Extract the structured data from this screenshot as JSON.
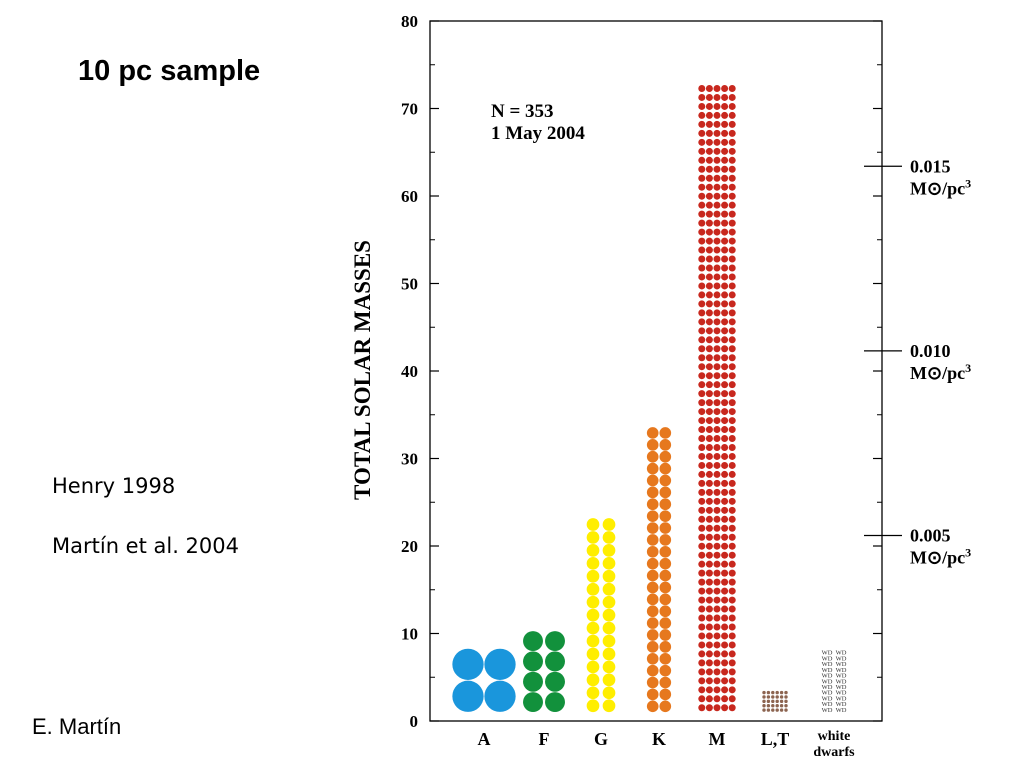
{
  "slide": {
    "title": "10 pc sample",
    "references": [
      "Henry 1998",
      "Martín et al. 2004"
    ],
    "credit": "E. Martín"
  },
  "chart_data": {
    "type": "bar",
    "ylabel": "TOTAL SOLAR MASSES",
    "ylim": [
      0,
      80
    ],
    "yticks": [
      0,
      10,
      20,
      30,
      40,
      50,
      60,
      70,
      80
    ],
    "annotation": [
      "N = 353",
      "1 May 2004"
    ],
    "categories": [
      {
        "label": "A",
        "value": 8.3,
        "color": "#1a96dc",
        "cols": 2,
        "rows": 2,
        "marker": "circle"
      },
      {
        "label": "F",
        "value": 10.3,
        "color": "#12913c",
        "cols": 2,
        "rows": 4,
        "marker": "circle"
      },
      {
        "label": "G",
        "value": 23.2,
        "color": "#ffee00",
        "cols": 2,
        "rows": 15,
        "marker": "circle"
      },
      {
        "label": "K",
        "value": 33.6,
        "color": "#e6781e",
        "cols": 2,
        "rows": 24,
        "marker": "circle"
      },
      {
        "label": "M",
        "value": 72.8,
        "color": "#c8281e",
        "cols": 5,
        "rows": 70,
        "marker": "circle"
      },
      {
        "label": "L,T",
        "value": 3.5,
        "color": "#8c6450",
        "cols": 6,
        "rows": 5,
        "marker": "circle"
      },
      {
        "label": "white\ndwarfs",
        "value": 8.2,
        "color": "#333333",
        "cols": 2,
        "rows": 11,
        "marker": "WD"
      }
    ],
    "density_markers": [
      {
        "value": 63.4,
        "label": "0.015",
        "unit": "M⊙/pc3"
      },
      {
        "value": 42.3,
        "label": "0.010",
        "unit": "M⊙/pc3"
      },
      {
        "value": 21.2,
        "label": "0.005",
        "unit": "M⊙/pc3"
      }
    ],
    "grid": false
  }
}
